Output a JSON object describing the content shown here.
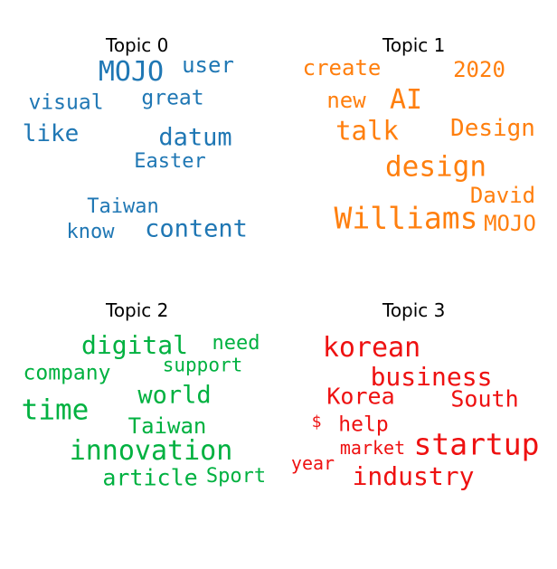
{
  "panels": [
    {
      "title": "Topic 0",
      "color": "#1f77b4",
      "words": [
        "MOJO",
        "user",
        "visual",
        "great",
        "like",
        "datum",
        "Easter",
        "Taiwan",
        "know",
        "content"
      ]
    },
    {
      "title": "Topic 1",
      "color": "#ff7f0e",
      "words": [
        "create",
        "2020",
        "new",
        "AI",
        "talk",
        "Design",
        "design",
        "David",
        "Williams",
        "MOJO"
      ]
    },
    {
      "title": "Topic 2",
      "color": "#00b140",
      "words": [
        "digital",
        "need",
        "company",
        "support",
        "time",
        "world",
        "Taiwan",
        "innovation",
        "article",
        "Sport"
      ]
    },
    {
      "title": "Topic 3",
      "color": "#ee1111",
      "words": [
        "korean",
        "business",
        "Korea",
        "South",
        "$",
        "help",
        "market",
        "startup",
        "year",
        "industry"
      ]
    }
  ]
}
